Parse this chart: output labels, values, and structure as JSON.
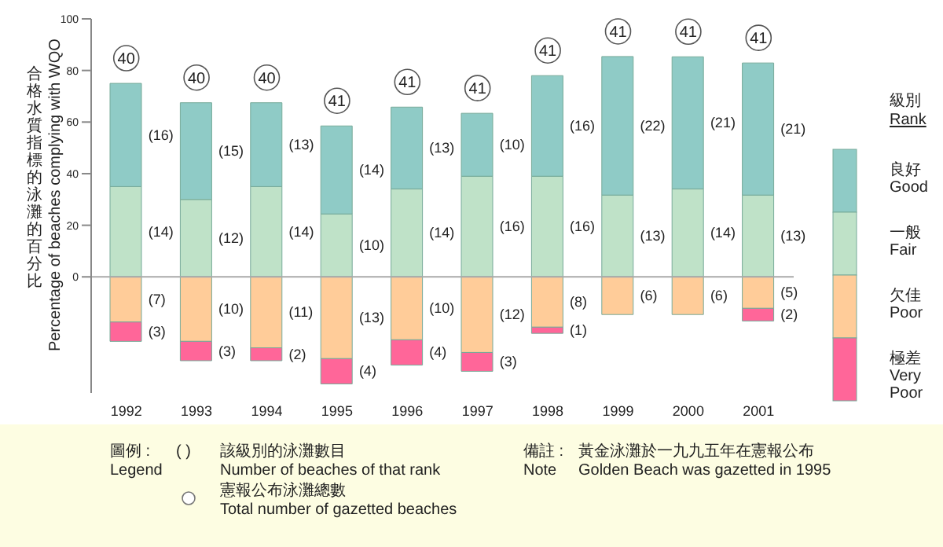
{
  "chart_data": {
    "type": "bar",
    "stacked": true,
    "ylabel": "合格水質指標的泳灘的百分比\nPercentage of beaches complying with WQO",
    "legend_title": "級別\nRank",
    "categories": [
      "1992",
      "1993",
      "1994",
      "1995",
      "1996",
      "1997",
      "1998",
      "1999",
      "2000",
      "2001"
    ],
    "series": [
      {
        "name": "一般\nFair",
        "color": "#bfe2c8",
        "values": [
          35,
          30,
          35,
          24.4,
          34.1,
          39.0,
          39.0,
          31.7,
          34.1,
          31.7
        ]
      },
      {
        "name": "良好\nGood",
        "color": "#8fcbc6",
        "values": [
          40,
          37.5,
          32.5,
          34.1,
          31.7,
          24.4,
          39.0,
          53.7,
          51.2,
          51.2
        ]
      },
      {
        "name": "欠佳\nPoor",
        "color": "#ffcc99",
        "values": [
          -17.5,
          -25,
          -27.5,
          -31.7,
          -24.4,
          -29.3,
          -19.5,
          -14.6,
          -14.6,
          -12.2
        ]
      },
      {
        "name": "極差\nVery\nPoor",
        "color": "#ff6699",
        "values": [
          -7.5,
          -7.5,
          -5,
          -9.8,
          -9.8,
          -7.3,
          -2.4,
          null,
          null,
          -4.9
        ]
      }
    ],
    "ylim": [
      -45,
      100
    ],
    "yticks": [
      0,
      20,
      40,
      60,
      80,
      100
    ],
    "ref_lines": [
      {
        "axis": "y",
        "value": 0,
        "color": "#aaaaaa"
      }
    ],
    "legend": "right",
    "annotations": [
      "圖例 :\nLegend",
      "( )",
      "該級別的泳灘數目\nNumber of beaches of that rank",
      "憲報公布泳灘總數\nTotal number of gazetted beaches",
      "備註 :\nNote",
      "黃金泳灘於一九九五年在憲報公布\nGolden Beach was gazetted in 1995",
      "(14)",
      "(16)",
      "(7)",
      "(3)",
      "(12)",
      "(15)",
      "(10)",
      "(3)",
      "(14)",
      "(13)",
      "(11)",
      "(2)",
      "(10)",
      "(14)",
      "(13)",
      "(4)",
      "(14)",
      "(13)",
      "(10)",
      "(4)",
      "(16)",
      "(10)",
      "(12)",
      "(3)",
      "(16)",
      "(16)",
      "(8)",
      "(1)",
      "(13)",
      "(22)",
      "(6)",
      "(14)",
      "(21)",
      "(6)",
      "(13)",
      "(21)",
      "(5)",
      "(2)",
      {
        "text": "40",
        "x": "1992",
        "y": 75
      },
      {
        "text": "40",
        "x": "1993",
        "y": 67.5
      },
      {
        "text": "40",
        "x": "1994",
        "y": 67.5
      },
      {
        "text": "41",
        "x": "1995",
        "y": 58.5
      },
      {
        "text": "41",
        "x": "1996",
        "y": 65.8
      },
      {
        "text": "41",
        "x": "1997",
        "y": 63.4
      },
      {
        "text": "41",
        "x": "1998",
        "y": 78.0
      },
      {
        "text": "41",
        "x": "1999",
        "y": 85.4
      },
      {
        "text": "41",
        "x": "2000",
        "y": 85.3
      },
      {
        "text": "41",
        "x": "2001",
        "y": 82.9
      }
    ]
  }
}
